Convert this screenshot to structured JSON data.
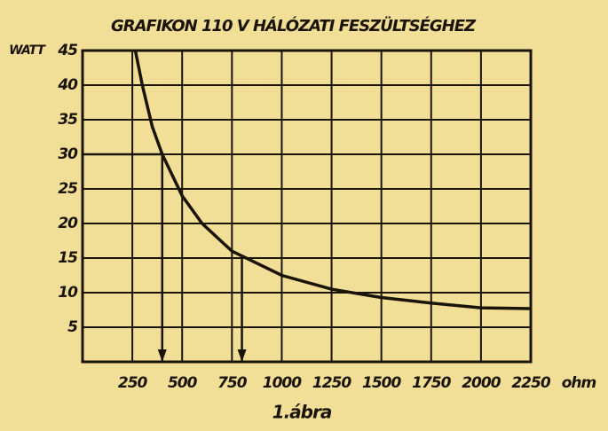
{
  "chart_data": {
    "type": "line",
    "title": "GRAFIKON 110 V HÁLÓZATI FESZÜLTSÉGHEZ",
    "y_label": "WATT",
    "x_label": "ohm",
    "caption": "1.ábra",
    "x": [
      265,
      300,
      350,
      400,
      500,
      600,
      750,
      1000,
      1250,
      1500,
      1750,
      2000,
      2250
    ],
    "values": [
      45,
      40,
      34,
      30,
      24,
      20,
      16,
      12.5,
      10.5,
      9.3,
      8.5,
      7.8,
      7.7
    ],
    "color": "#1a1408",
    "markers": [
      {
        "x": 400,
        "y": 30
      },
      {
        "x": 800,
        "y": 15
      }
    ],
    "xlim": [
      0,
      2250
    ],
    "xticks": [
      250,
      500,
      750,
      1000,
      1250,
      1500,
      1750,
      2000,
      2250
    ],
    "ylim": [
      0,
      45
    ],
    "yticks": [
      5,
      10,
      15,
      20,
      25,
      30,
      35,
      40,
      45
    ],
    "grid": true
  }
}
